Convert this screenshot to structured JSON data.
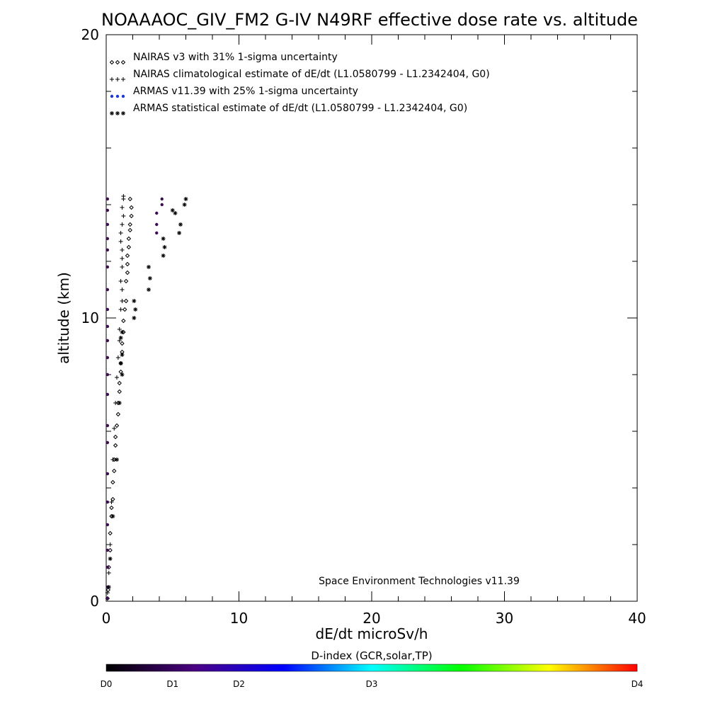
{
  "chart_data": {
    "type": "scatter",
    "title": "NOAAAOC_GIV_FM2 G-IV   N49RF  effective dose rate vs. altitude",
    "xlabel": "dE/dt microSv/h",
    "ylabel": "altitude (km)",
    "xlim": [
      0,
      40
    ],
    "ylim": [
      0,
      20
    ],
    "x_ticks": [
      "0",
      "10",
      "20",
      "30",
      "40"
    ],
    "y_ticks": [
      "0",
      "10",
      "20"
    ],
    "legend_placement": "top-left",
    "credit": "Space Environment Technologies v11.39",
    "legend": [
      {
        "key": "nairas",
        "glyph": "◇◇◇",
        "label": "NAIRAS v3 with 31% 1-sigma uncertainty",
        "color": "#000000"
      },
      {
        "key": "nairas_clim",
        "glyph": "+++",
        "label": "NAIRAS climatological estimate of dE/dt (L1.0580799 - L1.2342404, G0)",
        "color": "#000000"
      },
      {
        "key": "armas",
        "glyph": "●●●",
        "label": "ARMAS v11.39 with 25% 1-sigma uncertainty",
        "color": "#1a3ad6"
      },
      {
        "key": "armas_stat",
        "glyph": "***",
        "label": "ARMAS statistical estimate of dE/dt (L1.0580799 - L1.2342404, G0)",
        "color": "#000000"
      }
    ],
    "series": [
      {
        "name": "NAIRAS v3 with 31% 1-sigma uncertainty",
        "marker": "diamond",
        "color": "#000000",
        "points": [
          [
            0.1,
            0.1
          ],
          [
            0.15,
            0.4
          ],
          [
            0.2,
            1.2
          ],
          [
            0.3,
            1.8
          ],
          [
            0.3,
            2.4
          ],
          [
            0.4,
            3.0
          ],
          [
            0.4,
            3.3
          ],
          [
            0.5,
            3.6
          ],
          [
            0.5,
            4.2
          ],
          [
            0.6,
            4.6
          ],
          [
            0.6,
            5.0
          ],
          [
            0.7,
            5.5
          ],
          [
            0.7,
            5.8
          ],
          [
            0.8,
            6.2
          ],
          [
            0.9,
            6.6
          ],
          [
            0.9,
            7.0
          ],
          [
            1.0,
            7.4
          ],
          [
            1.0,
            7.7
          ],
          [
            1.1,
            8.1
          ],
          [
            1.1,
            8.4
          ],
          [
            1.2,
            8.8
          ],
          [
            1.2,
            9.1
          ],
          [
            1.3,
            9.5
          ],
          [
            1.3,
            9.9
          ],
          [
            1.4,
            10.3
          ],
          [
            1.5,
            10.6
          ],
          [
            1.5,
            11.3
          ],
          [
            1.6,
            11.6
          ],
          [
            1.6,
            11.9
          ],
          [
            1.6,
            12.2
          ],
          [
            1.7,
            12.5
          ],
          [
            1.7,
            12.8
          ],
          [
            1.8,
            13.1
          ],
          [
            1.8,
            13.3
          ],
          [
            1.9,
            13.6
          ],
          [
            1.9,
            13.9
          ],
          [
            1.8,
            14.2
          ]
        ]
      },
      {
        "name": "NAIRAS climatological estimate of dE/dt (L1.0580799 - L1.2342404, G0)",
        "marker": "plus",
        "color": "#000000",
        "points": [
          [
            0.1,
            0.3
          ],
          [
            0.2,
            1.0
          ],
          [
            0.3,
            2.0
          ],
          [
            0.4,
            3.5
          ],
          [
            0.5,
            5.0
          ],
          [
            0.6,
            6.1
          ],
          [
            0.7,
            7.0
          ],
          [
            0.8,
            7.9
          ],
          [
            0.9,
            8.6
          ],
          [
            1.0,
            9.2
          ],
          [
            1.0,
            9.6
          ],
          [
            1.1,
            10.3
          ],
          [
            1.2,
            10.6
          ],
          [
            1.2,
            11.0
          ],
          [
            1.1,
            11.3
          ],
          [
            1.2,
            11.8
          ],
          [
            1.2,
            12.1
          ],
          [
            1.2,
            12.4
          ],
          [
            1.1,
            12.7
          ],
          [
            1.1,
            13.0
          ],
          [
            1.2,
            13.3
          ],
          [
            1.3,
            13.6
          ],
          [
            1.2,
            13.9
          ],
          [
            1.3,
            14.2
          ],
          [
            1.3,
            14.3
          ]
        ]
      },
      {
        "name": "ARMAS v11.39 with 25% 1-sigma uncertainty",
        "marker": "dot",
        "color": "#3a0e50",
        "points": [
          [
            0.1,
            0.1
          ],
          [
            0.1,
            0.5
          ],
          [
            0.1,
            1.2
          ],
          [
            0.1,
            1.8
          ],
          [
            0.1,
            2.7
          ],
          [
            0.1,
            3.5
          ],
          [
            0.1,
            4.5
          ],
          [
            0.1,
            5.6
          ],
          [
            0.1,
            6.2
          ],
          [
            0.1,
            7.3
          ],
          [
            0.1,
            8.0
          ],
          [
            0.1,
            8.6
          ],
          [
            0.1,
            9.2
          ],
          [
            0.1,
            9.7
          ],
          [
            0.1,
            10.3
          ],
          [
            0.1,
            11.0
          ],
          [
            0.1,
            11.8
          ],
          [
            0.1,
            12.4
          ],
          [
            0.1,
            12.8
          ],
          [
            0.1,
            13.3
          ],
          [
            0.1,
            13.8
          ],
          [
            0.1,
            14.2
          ],
          [
            3.8,
            13.0
          ],
          [
            3.8,
            13.3
          ],
          [
            3.8,
            13.7
          ],
          [
            4.2,
            14.0
          ],
          [
            4.2,
            14.2
          ]
        ]
      },
      {
        "name": "ARMAS statistical estimate of dE/dt (L1.0580799 - L1.2342404, G0)",
        "marker": "asterisk",
        "color": "#000000",
        "points": [
          [
            0.2,
            0.5
          ],
          [
            0.3,
            1.5
          ],
          [
            0.5,
            3.0
          ],
          [
            0.8,
            5.0
          ],
          [
            1.0,
            7.0
          ],
          [
            1.2,
            8.0
          ],
          [
            1.1,
            8.4
          ],
          [
            1.2,
            8.7
          ],
          [
            1.1,
            9.3
          ],
          [
            1.2,
            9.5
          ],
          [
            2.1,
            10.0
          ],
          [
            2.2,
            10.3
          ],
          [
            2.1,
            10.6
          ],
          [
            3.2,
            11.0
          ],
          [
            3.3,
            11.4
          ],
          [
            3.2,
            11.8
          ],
          [
            4.3,
            12.2
          ],
          [
            4.4,
            12.5
          ],
          [
            4.3,
            12.8
          ],
          [
            5.5,
            13.0
          ],
          [
            5.6,
            13.3
          ],
          [
            5.2,
            13.7
          ],
          [
            5.0,
            13.8
          ],
          [
            5.9,
            14.0
          ],
          [
            6.0,
            14.2
          ]
        ]
      }
    ],
    "colorbar": {
      "title": "D-index (GCR,solar,TP)",
      "labels": [
        "D0",
        "D1",
        "D2",
        "D3",
        "D4"
      ],
      "label_positions": [
        0,
        0.125,
        0.25,
        0.5,
        1.0
      ],
      "colors": [
        "#000000",
        "#4b0082",
        "#0000ff",
        "#00ffff",
        "#00ff00",
        "#ffff00",
        "#ff0000"
      ]
    }
  }
}
